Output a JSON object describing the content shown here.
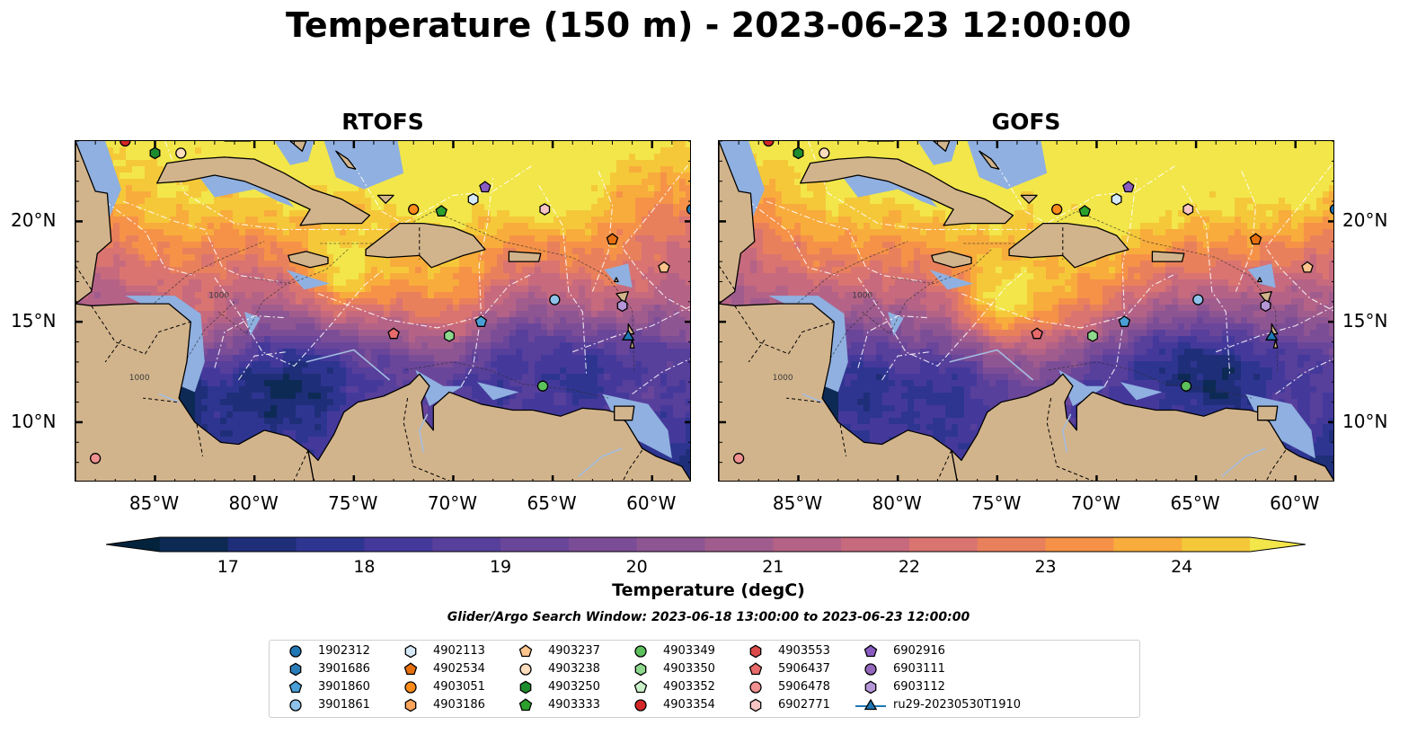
{
  "title": "Temperature (150 m) - 2023-06-23 12:00:00",
  "panels": [
    {
      "title": "RTOFS"
    },
    {
      "title": "GOFS"
    }
  ],
  "map": {
    "lon_range": [
      -89,
      -58
    ],
    "lat_range": [
      7,
      24
    ],
    "x_ticks": [
      "85°W",
      "80°W",
      "75°W",
      "70°W",
      "65°W",
      "60°W"
    ],
    "x_tick_values": [
      -85,
      -80,
      -75,
      -70,
      -65,
      -60
    ],
    "y_ticks": [
      "20°N",
      "15°N",
      "10°N"
    ],
    "y_tick_values": [
      20,
      15,
      10
    ],
    "contour_labels": [
      "1000",
      "1000"
    ],
    "colors": {
      "land": "#d2b48c",
      "shallow_water": "#8fb0e0",
      "coast": "#000000"
    }
  },
  "colorbar": {
    "label": "Temperature (degC)",
    "ticks": [
      "17",
      "18",
      "19",
      "20",
      "21",
      "22",
      "23",
      "24"
    ],
    "tick_values": [
      17,
      18,
      19,
      20,
      21,
      22,
      23,
      24
    ],
    "range": [
      16.5,
      24.5
    ],
    "step": 0.5,
    "colors": [
      "#03233c",
      "#0d2a55",
      "#1f2e78",
      "#2e3591",
      "#44399b",
      "#573f9c",
      "#6a469a",
      "#7c4d97",
      "#8e5593",
      "#a15c8e",
      "#b46387",
      "#c76a7d",
      "#d97470",
      "#e9805c",
      "#f59248",
      "#f8ac3c",
      "#f5c83a",
      "#f2e64a"
    ]
  },
  "search_window": "Glider/Argo Search Window: 2023-06-18 13:00:00 to 2023-06-23 12:00:00",
  "legend": [
    {
      "label": "1902312",
      "marker": "circle",
      "color": "#1f77b4"
    },
    {
      "label": "3901686",
      "marker": "hexagon",
      "color": "#2a7cb8"
    },
    {
      "label": "3901860",
      "marker": "pentagon",
      "color": "#4a9fd6"
    },
    {
      "label": "3901861",
      "marker": "circle",
      "color": "#8fc2ea"
    },
    {
      "label": "4902113",
      "marker": "hexagon",
      "color": "#d6e9f8"
    },
    {
      "label": "4902534",
      "marker": "pentagon",
      "color": "#e6700f"
    },
    {
      "label": "4903051",
      "marker": "circle",
      "color": "#ff8c1a"
    },
    {
      "label": "4903186",
      "marker": "hexagon",
      "color": "#ffa55a"
    },
    {
      "label": "4903237",
      "marker": "pentagon",
      "color": "#ffc58c"
    },
    {
      "label": "4903238",
      "marker": "circle",
      "color": "#ffdcbc"
    },
    {
      "label": "4903250",
      "marker": "hexagon",
      "color": "#1e8c2c"
    },
    {
      "label": "4903333",
      "marker": "pentagon",
      "color": "#2ca02c"
    },
    {
      "label": "4903349",
      "marker": "circle",
      "color": "#5cc05c"
    },
    {
      "label": "4903350",
      "marker": "hexagon",
      "color": "#8ed88e"
    },
    {
      "label": "4903352",
      "marker": "pentagon",
      "color": "#c9f0c9"
    },
    {
      "label": "4903354",
      "marker": "circle",
      "color": "#d62728"
    },
    {
      "label": "4903553",
      "marker": "hexagon",
      "color": "#dc4a4a"
    },
    {
      "label": "5906437",
      "marker": "pentagon",
      "color": "#e86a6a"
    },
    {
      "label": "5906478",
      "marker": "circle",
      "color": "#f09090"
    },
    {
      "label": "6902771",
      "marker": "hexagon",
      "color": "#f8c4c4"
    },
    {
      "label": "6902916",
      "marker": "pentagon",
      "color": "#8a5cc2"
    },
    {
      "label": "6903111",
      "marker": "circle",
      "color": "#9467bd"
    },
    {
      "label": "6903112",
      "marker": "hexagon",
      "color": "#b596d8"
    },
    {
      "label": "ru29-20230530T1910",
      "marker": "triangle-line",
      "color": "#1f77b4"
    }
  ],
  "platforms": [
    {
      "id": "4903354",
      "lon": -86.5,
      "lat": 24.0
    },
    {
      "id": "4903250",
      "lon": -85.0,
      "lat": 23.4
    },
    {
      "id": "4903238",
      "lon": -83.7,
      "lat": 23.4
    },
    {
      "id": "5906478",
      "lon": -88.0,
      "lat": 8.2
    },
    {
      "id": "4903051",
      "lon": -72.0,
      "lat": 20.6
    },
    {
      "id": "4903333",
      "lon": -70.6,
      "lat": 20.5
    },
    {
      "id": "4902113",
      "lon": -69.0,
      "lat": 21.1
    },
    {
      "id": "6902916",
      "lon": -68.4,
      "lat": 21.7
    },
    {
      "id": "6902771",
      "lon": -65.4,
      "lat": 20.6
    },
    {
      "id": "1902312",
      "lon": -58.0,
      "lat": 20.6
    },
    {
      "id": "4902534",
      "lon": -62.0,
      "lat": 19.1
    },
    {
      "id": "4903237",
      "lon": -59.4,
      "lat": 17.7
    },
    {
      "id": "3901861",
      "lon": -64.9,
      "lat": 16.1
    },
    {
      "id": "6903112",
      "lon": -61.5,
      "lat": 15.8
    },
    {
      "id": "3901860",
      "lon": -68.6,
      "lat": 15.0
    },
    {
      "id": "5906437",
      "lon": -73.0,
      "lat": 14.4
    },
    {
      "id": "4903350",
      "lon": -70.2,
      "lat": 14.3
    },
    {
      "id": "ru29-20230530T1910",
      "lon": -61.2,
      "lat": 14.3
    },
    {
      "id": "4903349",
      "lon": -65.5,
      "lat": 11.8
    }
  ]
}
